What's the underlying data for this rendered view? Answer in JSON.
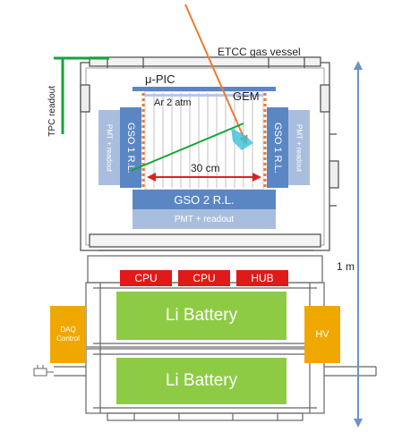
{
  "labels": {
    "etcc_vessel": "ETCC gas vessel",
    "mu_pic": "μ-PIC",
    "gem": "GEM",
    "ar": "Ar 2 atm",
    "tpc_readout": "TPC readout",
    "gso1_left": "GSO 1 R.L.",
    "gso1_right": "GSO 1 R.L.",
    "pmt_left": "PMT + readout",
    "pmt_right": "PMT + readout",
    "width_30cm": "30 cm",
    "gso2": "GSO 2 R.L.",
    "pmt_bottom": "PMT + readout",
    "cpu1": "CPU",
    "cpu2": "CPU",
    "hub": "HUB",
    "battery_top": "Li Battery",
    "battery_bottom": "Li Battery",
    "daq": "DAQ Control",
    "hv": "HV",
    "height_1m": "1 m"
  },
  "colors": {
    "steel_blue": "#5b86c4",
    "pmt_blue": "#a9bedf",
    "battery_green": "#8ecb45",
    "cpu_red": "#e01919",
    "daq_orange": "#f0a800",
    "tpc_green": "#13a538",
    "track_orange": "#f07a30",
    "arrow_red": "#e02020",
    "dim_blue": "#6a93c8"
  }
}
